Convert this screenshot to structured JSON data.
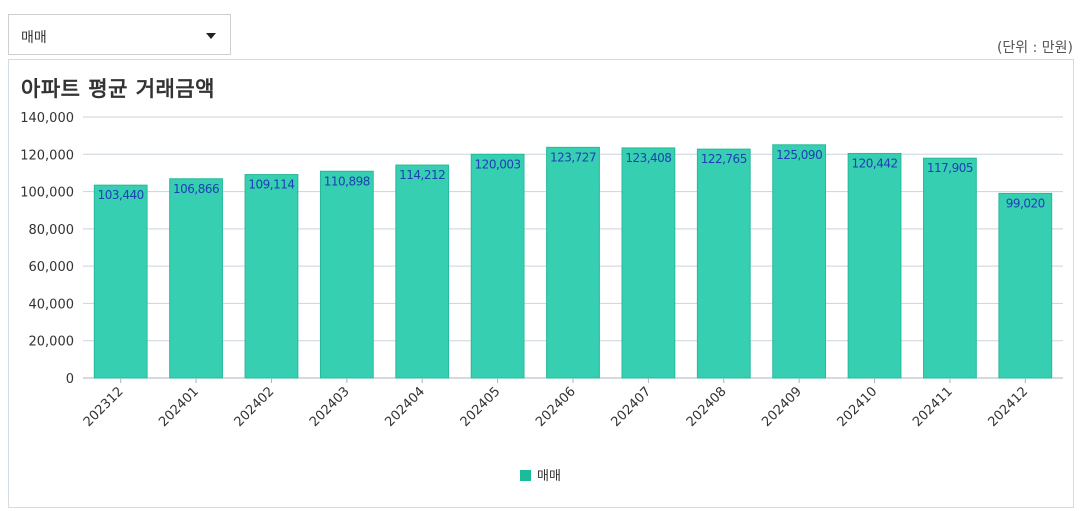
{
  "filter": {
    "selected": "매매"
  },
  "unit_label": "(단위 : 만원)",
  "colors": {
    "bar": "#36cfb2",
    "bar_border": "#26b89b",
    "value_label": "#1f3fb3",
    "legend": "#1abc9c",
    "grid": "#c9d3dd"
  },
  "chart_data": {
    "type": "bar",
    "title": "아파트 평균 거래금액",
    "xlabel": "",
    "ylabel": "",
    "categories": [
      "202312",
      "202401",
      "202402",
      "202403",
      "202404",
      "202405",
      "202406",
      "202407",
      "202408",
      "202409",
      "202410",
      "202411",
      "202412"
    ],
    "series": [
      {
        "name": "매매",
        "values": [
          103440,
          106866,
          109114,
          110898,
          114212,
          120003,
          123727,
          123408,
          122765,
          125090,
          120442,
          117905,
          99020
        ]
      }
    ],
    "value_labels": [
      "103,440",
      "106,866",
      "109,114",
      "110,898",
      "114,212",
      "120,003",
      "123,727",
      "123,408",
      "122,765",
      "125,090",
      "120,442",
      "117,905",
      "99,020"
    ],
    "ylim": [
      0,
      140000
    ],
    "yticks": [
      "0",
      "20,000",
      "40,000",
      "60,000",
      "80,000",
      "100,000",
      "120,000",
      "140,000"
    ],
    "grid": true,
    "legend_position": "bottom"
  }
}
